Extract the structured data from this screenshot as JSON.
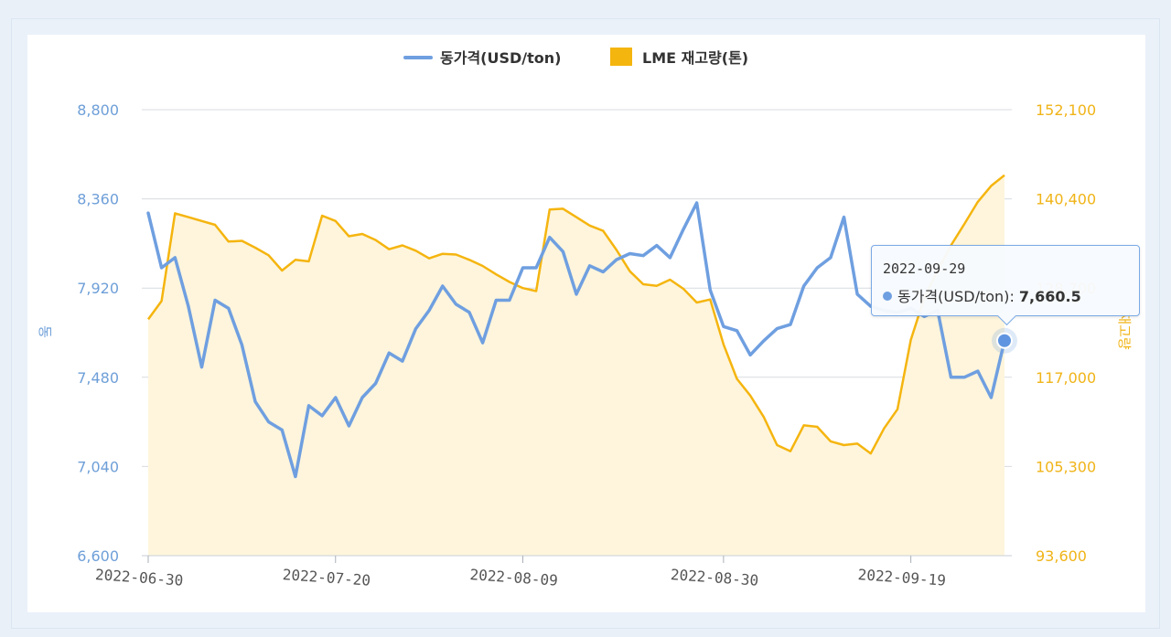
{
  "chart_data": {
    "type": "line",
    "legend": [
      {
        "name": "동가격(USD/ton)",
        "color": "#6f9fe0"
      },
      {
        "name": "LME 재고량(톤)",
        "color": "#f5b50f"
      }
    ],
    "y_left": {
      "label": "동",
      "ticks": [
        "8,800",
        "8,360",
        "7,920",
        "7,480",
        "7,040",
        "6,600"
      ],
      "range": [
        6600,
        8800
      ]
    },
    "y_right": {
      "label": "재고량",
      "ticks": [
        "152,100",
        "140,400",
        "128,700",
        "117,000",
        "105,300",
        "93,600"
      ],
      "range": [
        93600,
        152100
      ]
    },
    "x_ticks": [
      "2022-06-30",
      "2022-07-20",
      "2022-08-09",
      "2022-08-30",
      "2022-09-19"
    ],
    "series": [
      {
        "name": "동가격(USD/ton)",
        "axis": "left",
        "values": [
          8290,
          8020,
          8070,
          7830,
          7530,
          7860,
          7820,
          7640,
          7360,
          7260,
          7220,
          6990,
          7340,
          7290,
          7380,
          7240,
          7380,
          7450,
          7600,
          7560,
          7720,
          7810,
          7930,
          7840,
          7800,
          7650,
          7860,
          7860,
          8020,
          8020,
          8170,
          8100,
          7890,
          8030,
          8000,
          8060,
          8090,
          8080,
          8130,
          8070,
          8210,
          8340,
          7910,
          7730,
          7710,
          7590,
          7660,
          7720,
          7740,
          7930,
          8020,
          8070,
          8270,
          7890,
          7830,
          7810,
          7800,
          7820,
          7780,
          7810,
          7480,
          7480,
          7510,
          7380,
          7660.5
        ]
      },
      {
        "name": "LME 재고량(톤)",
        "axis": "right",
        "values": [
          124600,
          127000,
          138500,
          138000,
          137500,
          137000,
          134800,
          134900,
          134000,
          133000,
          131000,
          132400,
          132200,
          138200,
          137500,
          135500,
          135800,
          135000,
          133800,
          134300,
          133600,
          132600,
          133200,
          133100,
          132400,
          131600,
          130500,
          129500,
          128700,
          128300,
          139000,
          139100,
          138000,
          136900,
          136200,
          133700,
          130900,
          129200,
          129000,
          129800,
          128600,
          126800,
          127200,
          121300,
          116800,
          114600,
          111800,
          108100,
          107300,
          110700,
          110500,
          108600,
          108100,
          108300,
          107000,
          110300,
          112800,
          121900,
          127400,
          131000,
          134300,
          137100,
          140000,
          142100,
          143500
        ]
      }
    ],
    "tooltip": {
      "date": "2022-09-29",
      "series": "동가격(USD/ton)",
      "value": "7,660.5"
    }
  }
}
